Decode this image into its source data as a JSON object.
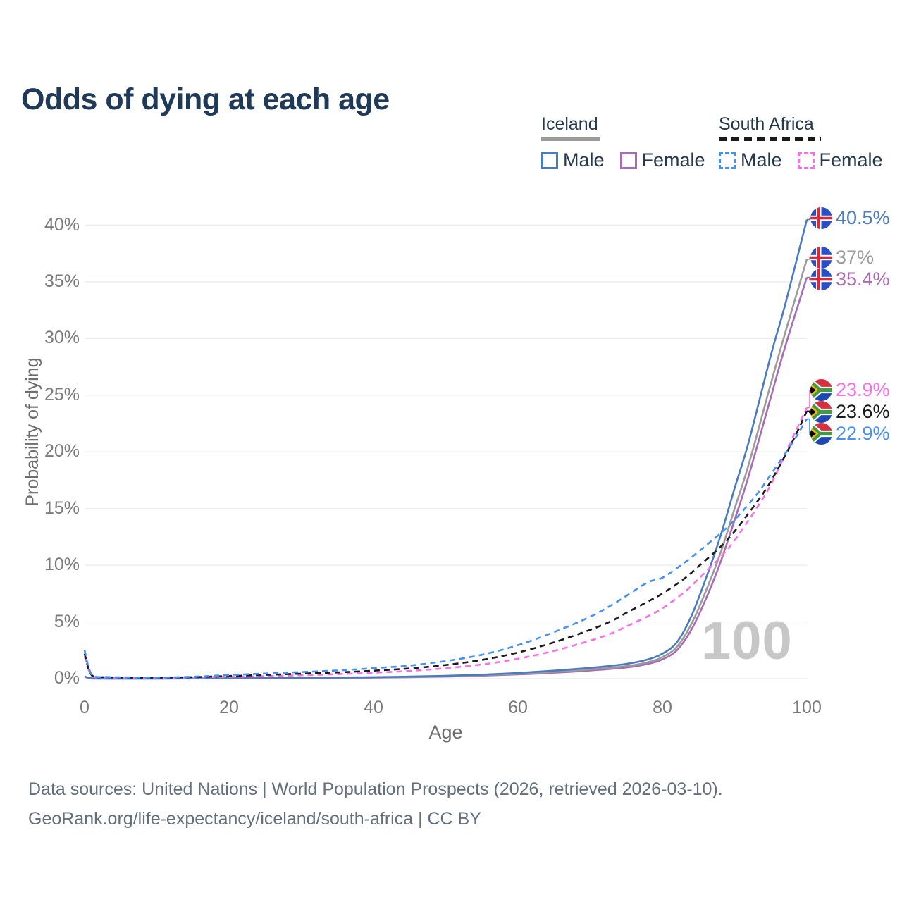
{
  "title": "Odds of dying at each age",
  "legend": {
    "groups": [
      {
        "name": "Iceland",
        "underline_style": "solid",
        "underline_color": "#9b9b9b",
        "items": [
          {
            "label": "Male",
            "color": "#4a7bbf",
            "dash": false
          },
          {
            "label": "Female",
            "color": "#a96bb5",
            "dash": false
          }
        ]
      },
      {
        "name": "South Africa",
        "underline_style": "dashed",
        "underline_color": "#1a1a1a",
        "items": [
          {
            "label": "Male",
            "color": "#4590f5",
            "dash": true
          },
          {
            "label": "Female",
            "color": "#fc6ee8",
            "dash": true
          }
        ]
      }
    ]
  },
  "chart_data": {
    "type": "line",
    "title": "Odds of dying at each age",
    "xlabel": "Age",
    "ylabel": "Probability of dying",
    "xlim": [
      0,
      100
    ],
    "ylim": [
      0,
      40.5
    ],
    "x_ticks": [
      0,
      20,
      40,
      60,
      80,
      100
    ],
    "y_ticks": [
      {
        "value": 0,
        "label": "0%"
      },
      {
        "value": 5,
        "label": "5%"
      },
      {
        "value": 10,
        "label": "10%"
      },
      {
        "value": 15,
        "label": "15%"
      },
      {
        "value": 20,
        "label": "20%"
      },
      {
        "value": 25,
        "label": "25%"
      },
      {
        "value": 30,
        "label": "30%"
      },
      {
        "value": 35,
        "label": "35%"
      },
      {
        "value": 40,
        "label": "40%"
      }
    ],
    "grid": "horizontal",
    "legend_position": "top-right",
    "watermark": "100",
    "series": [
      {
        "id": "iceland-female",
        "name": "Iceland Female",
        "country": "Iceland",
        "sex": "Female",
        "color": "#a96bb5",
        "dash": false,
        "flag_icon": "iceland-flag-icon",
        "end_label": "35.4%",
        "x": [
          0,
          1,
          3,
          5,
          10,
          15,
          20,
          25,
          30,
          35,
          40,
          45,
          50,
          55,
          60,
          65,
          70,
          75,
          78,
          80,
          82,
          84,
          86,
          88,
          90,
          92,
          95,
          97,
          100
        ],
        "y": [
          0.16,
          0.016,
          0.008,
          0.007,
          0.008,
          0.02,
          0.03,
          0.04,
          0.05,
          0.07,
          0.09,
          0.13,
          0.18,
          0.26,
          0.37,
          0.52,
          0.72,
          0.98,
          1.3,
          1.7,
          2.5,
          4.3,
          7.0,
          10.2,
          14.0,
          18.0,
          24.8,
          29.3,
          35.4
        ]
      },
      {
        "id": "iceland-all",
        "name": "Iceland Both sexes",
        "country": "Iceland",
        "sex": "All",
        "color": "#9b9b9b",
        "dash": false,
        "flag_icon": "iceland-flag-icon",
        "end_label": "37%",
        "x": [
          0,
          1,
          3,
          5,
          10,
          15,
          20,
          25,
          30,
          35,
          40,
          45,
          50,
          55,
          60,
          65,
          70,
          75,
          78,
          80,
          82,
          84,
          86,
          88,
          90,
          92,
          95,
          97,
          100
        ],
        "y": [
          0.18,
          0.018,
          0.009,
          0.008,
          0.009,
          0.025,
          0.05,
          0.06,
          0.07,
          0.09,
          0.11,
          0.15,
          0.21,
          0.3,
          0.43,
          0.6,
          0.82,
          1.1,
          1.45,
          1.9,
          2.8,
          4.8,
          7.7,
          11.0,
          15.0,
          19.0,
          26.0,
          30.5,
          37.0
        ]
      },
      {
        "id": "iceland-male",
        "name": "Iceland Male",
        "country": "Iceland",
        "sex": "Male",
        "color": "#4a7bbf",
        "dash": false,
        "flag_icon": "iceland-flag-icon",
        "end_label": "40.5%",
        "x": [
          0,
          1,
          3,
          5,
          10,
          15,
          20,
          25,
          30,
          35,
          40,
          45,
          50,
          55,
          60,
          65,
          70,
          75,
          78,
          80,
          82,
          84,
          86,
          88,
          90,
          92,
          95,
          97,
          100
        ],
        "y": [
          0.2,
          0.02,
          0.01,
          0.01,
          0.01,
          0.03,
          0.06,
          0.07,
          0.08,
          0.1,
          0.13,
          0.18,
          0.25,
          0.35,
          0.5,
          0.7,
          0.95,
          1.3,
          1.7,
          2.2,
          3.2,
          5.5,
          8.8,
          12.5,
          16.8,
          21.0,
          28.5,
          33.0,
          40.5
        ]
      },
      {
        "id": "south-africa-female",
        "name": "South Africa Female",
        "country": "South Africa",
        "sex": "Female",
        "color": "#fc6ee8",
        "dash": true,
        "flag_icon": "south-africa-flag-icon",
        "end_label": "23.9%",
        "x": [
          0,
          1,
          3,
          5,
          10,
          15,
          20,
          25,
          30,
          35,
          40,
          45,
          50,
          55,
          60,
          65,
          70,
          73,
          75,
          78,
          80,
          83,
          85,
          88,
          90,
          93,
          95,
          98,
          100
        ],
        "y": [
          1.95,
          0.27,
          0.11,
          0.09,
          0.075,
          0.1,
          0.16,
          0.22,
          0.3,
          0.4,
          0.52,
          0.68,
          0.92,
          1.25,
          1.75,
          2.45,
          3.35,
          4.0,
          4.6,
          5.5,
          6.2,
          7.6,
          8.8,
          10.7,
          12.2,
          15.0,
          17.1,
          21.2,
          23.9
        ]
      },
      {
        "id": "south-africa-all",
        "name": "South Africa Both sexes",
        "country": "South Africa",
        "sex": "All",
        "color": "#1a1a1a",
        "dash": true,
        "flag_icon": "south-africa-flag-icon",
        "end_label": "23.6%",
        "x": [
          0,
          1,
          3,
          5,
          10,
          15,
          20,
          25,
          30,
          35,
          40,
          45,
          50,
          55,
          60,
          65,
          70,
          73,
          75,
          78,
          80,
          83,
          85,
          88,
          90,
          93,
          95,
          98,
          100
        ],
        "y": [
          2.2,
          0.3,
          0.13,
          0.1,
          0.085,
          0.13,
          0.23,
          0.33,
          0.44,
          0.55,
          0.7,
          0.9,
          1.2,
          1.65,
          2.3,
          3.2,
          4.3,
          5.1,
          5.8,
          6.8,
          7.5,
          8.8,
          9.9,
          11.6,
          13.0,
          15.5,
          17.4,
          20.9,
          23.6
        ]
      },
      {
        "id": "south-africa-male",
        "name": "South Africa Male",
        "country": "South Africa",
        "sex": "Male",
        "color": "#4590f5",
        "dash": true,
        "flag_icon": "south-africa-flag-icon",
        "end_label": "22.9%",
        "x": [
          0,
          1,
          3,
          5,
          10,
          15,
          20,
          25,
          30,
          35,
          40,
          45,
          50,
          55,
          60,
          65,
          70,
          73,
          75,
          78,
          80,
          83,
          85,
          88,
          90,
          93,
          95,
          98,
          100
        ],
        "y": [
          2.5,
          0.35,
          0.15,
          0.12,
          0.1,
          0.17,
          0.32,
          0.45,
          0.58,
          0.72,
          0.92,
          1.15,
          1.55,
          2.1,
          2.95,
          4.1,
          5.45,
          6.5,
          7.3,
          8.5,
          8.9,
          10.2,
          11.2,
          12.8,
          14.0,
          16.2,
          18.0,
          20.8,
          22.9
        ]
      }
    ]
  },
  "footer": {
    "line1": "Data sources: United Nations | World Population Prospects (2026, retrieved 2026-03-10).",
    "line2": "GeoRank.org/life-expectancy/iceland/south-africa | CC BY"
  }
}
